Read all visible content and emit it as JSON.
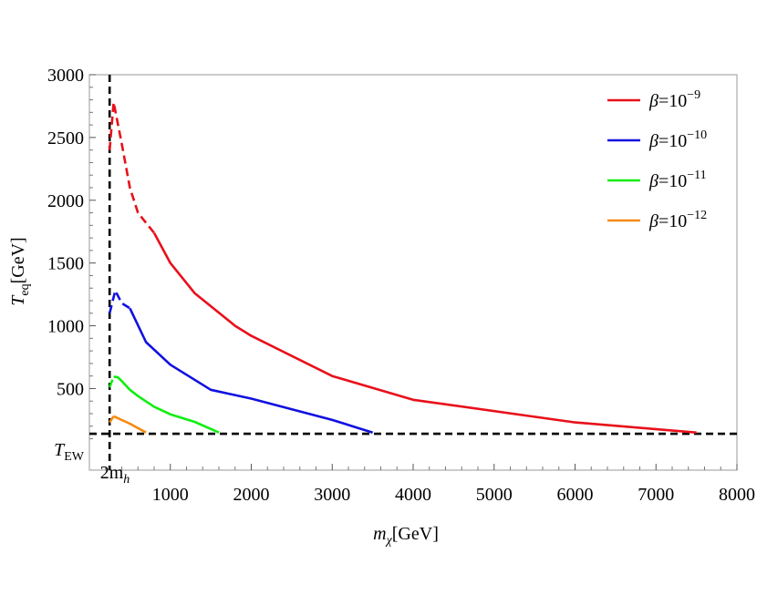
{
  "chart_data": {
    "type": "line",
    "title": "",
    "xlabel": {
      "symbol": "m",
      "sub": "χ",
      "unit": "[GeV]"
    },
    "ylabel": {
      "symbol": "T",
      "sub": "eq",
      "unit": "[GeV]"
    },
    "xlim": [
      0,
      8000
    ],
    "ylim": [
      -150,
      3000
    ],
    "x_ticks": [
      1000,
      2000,
      3000,
      4000,
      5000,
      6000,
      7000,
      8000
    ],
    "y_ticks": [
      500,
      1000,
      1500,
      2000,
      2500,
      3000
    ],
    "grid": false,
    "legend_position": "top-right",
    "reference_lines": [
      {
        "orientation": "vertical",
        "value": 250,
        "style": "dashed",
        "color": "#000000",
        "label": {
          "text": "2m",
          "sub": "h"
        }
      },
      {
        "orientation": "horizontal",
        "value": 140,
        "style": "dashed",
        "color": "#000000",
        "label": {
          "text": "T",
          "sub": "EW"
        }
      }
    ],
    "series": [
      {
        "name": "β=10⁻⁹",
        "label_base": "β=10",
        "label_exp": "−9",
        "color": "#e8101a",
        "dashed": {
          "x": [
            250,
            300,
            400,
            500,
            600,
            800
          ],
          "y": [
            2400,
            2780,
            2450,
            2100,
            1900,
            1740
          ]
        },
        "solid": {
          "x": [
            800,
            1000,
            1300,
            1800,
            2000,
            3000,
            4000,
            6000,
            7500
          ],
          "y": [
            1740,
            1500,
            1260,
            1000,
            920,
            600,
            410,
            230,
            150
          ]
        }
      },
      {
        "name": "β=10⁻¹⁰",
        "label_base": "β=10",
        "label_exp": "−10",
        "color": "#1010e0",
        "dashed": {
          "x": [
            250,
            320,
            400,
            500
          ],
          "y": [
            1100,
            1280,
            1180,
            1140
          ]
        },
        "solid": {
          "x": [
            500,
            700,
            1000,
            1300,
            1500,
            2000,
            3000,
            3500
          ],
          "y": [
            1140,
            870,
            690,
            570,
            490,
            420,
            250,
            150
          ]
        }
      },
      {
        "name": "β=10⁻¹¹",
        "label_base": "β=10",
        "label_exp": "−11",
        "color": "#10ee10",
        "dashed": {
          "x": [
            250,
            300
          ],
          "y": [
            510,
            595
          ]
        },
        "solid": {
          "x": [
            300,
            350,
            400,
            500,
            600,
            800,
            1000,
            1300,
            1600
          ],
          "y": [
            595,
            590,
            560,
            490,
            440,
            355,
            295,
            235,
            150
          ]
        }
      },
      {
        "name": "β=10⁻¹²",
        "label_base": "β=10",
        "label_exp": "−12",
        "color": "#f58a10",
        "dashed": {
          "x": [
            250,
            300
          ],
          "y": [
            230,
            280
          ]
        },
        "solid": {
          "x": [
            300,
            500,
            700
          ],
          "y": [
            280,
            220,
            150
          ]
        }
      }
    ]
  }
}
